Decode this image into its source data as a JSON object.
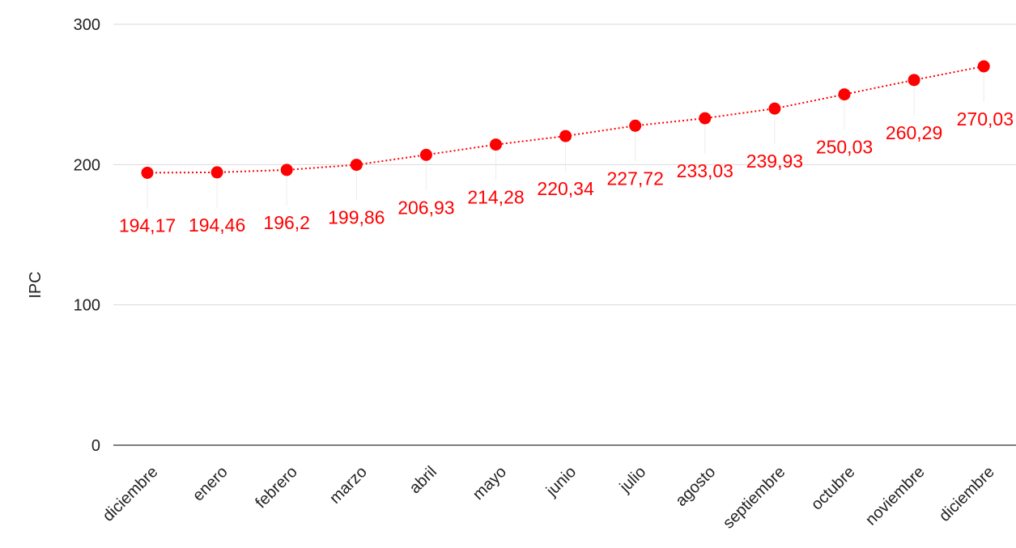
{
  "chart_data": {
    "type": "line",
    "title": "",
    "xlabel": "",
    "ylabel": "IPC",
    "ylim": [
      0,
      300
    ],
    "yticks": [
      0,
      100,
      200,
      300
    ],
    "grid": true,
    "legend": "none",
    "categories": [
      "diciembre",
      "enero",
      "febrero",
      "marzo",
      "abril",
      "mayo",
      "junio",
      "julio",
      "agosto",
      "septiembre",
      "octubre",
      "noviembre",
      "diciembre"
    ],
    "series": [
      {
        "values": [
          194.17,
          194.46,
          196.2,
          199.86,
          206.93,
          214.28,
          220.34,
          227.72,
          233.03,
          239.93,
          250.03,
          260.29,
          270.03
        ],
        "labels": [
          "194,17",
          "194,46",
          "196,2",
          "199,86",
          "206,93",
          "214,28",
          "220,34",
          "227,72",
          "233,03",
          "239,93",
          "250,03",
          "260,29",
          "270,03"
        ],
        "color": "#ff0000",
        "line_style": "dotted",
        "marker": "circle"
      }
    ]
  },
  "colors": {
    "series": "#ff0000",
    "grid": "#d9d9d9",
    "axis": "#333333",
    "text": "#222222"
  }
}
